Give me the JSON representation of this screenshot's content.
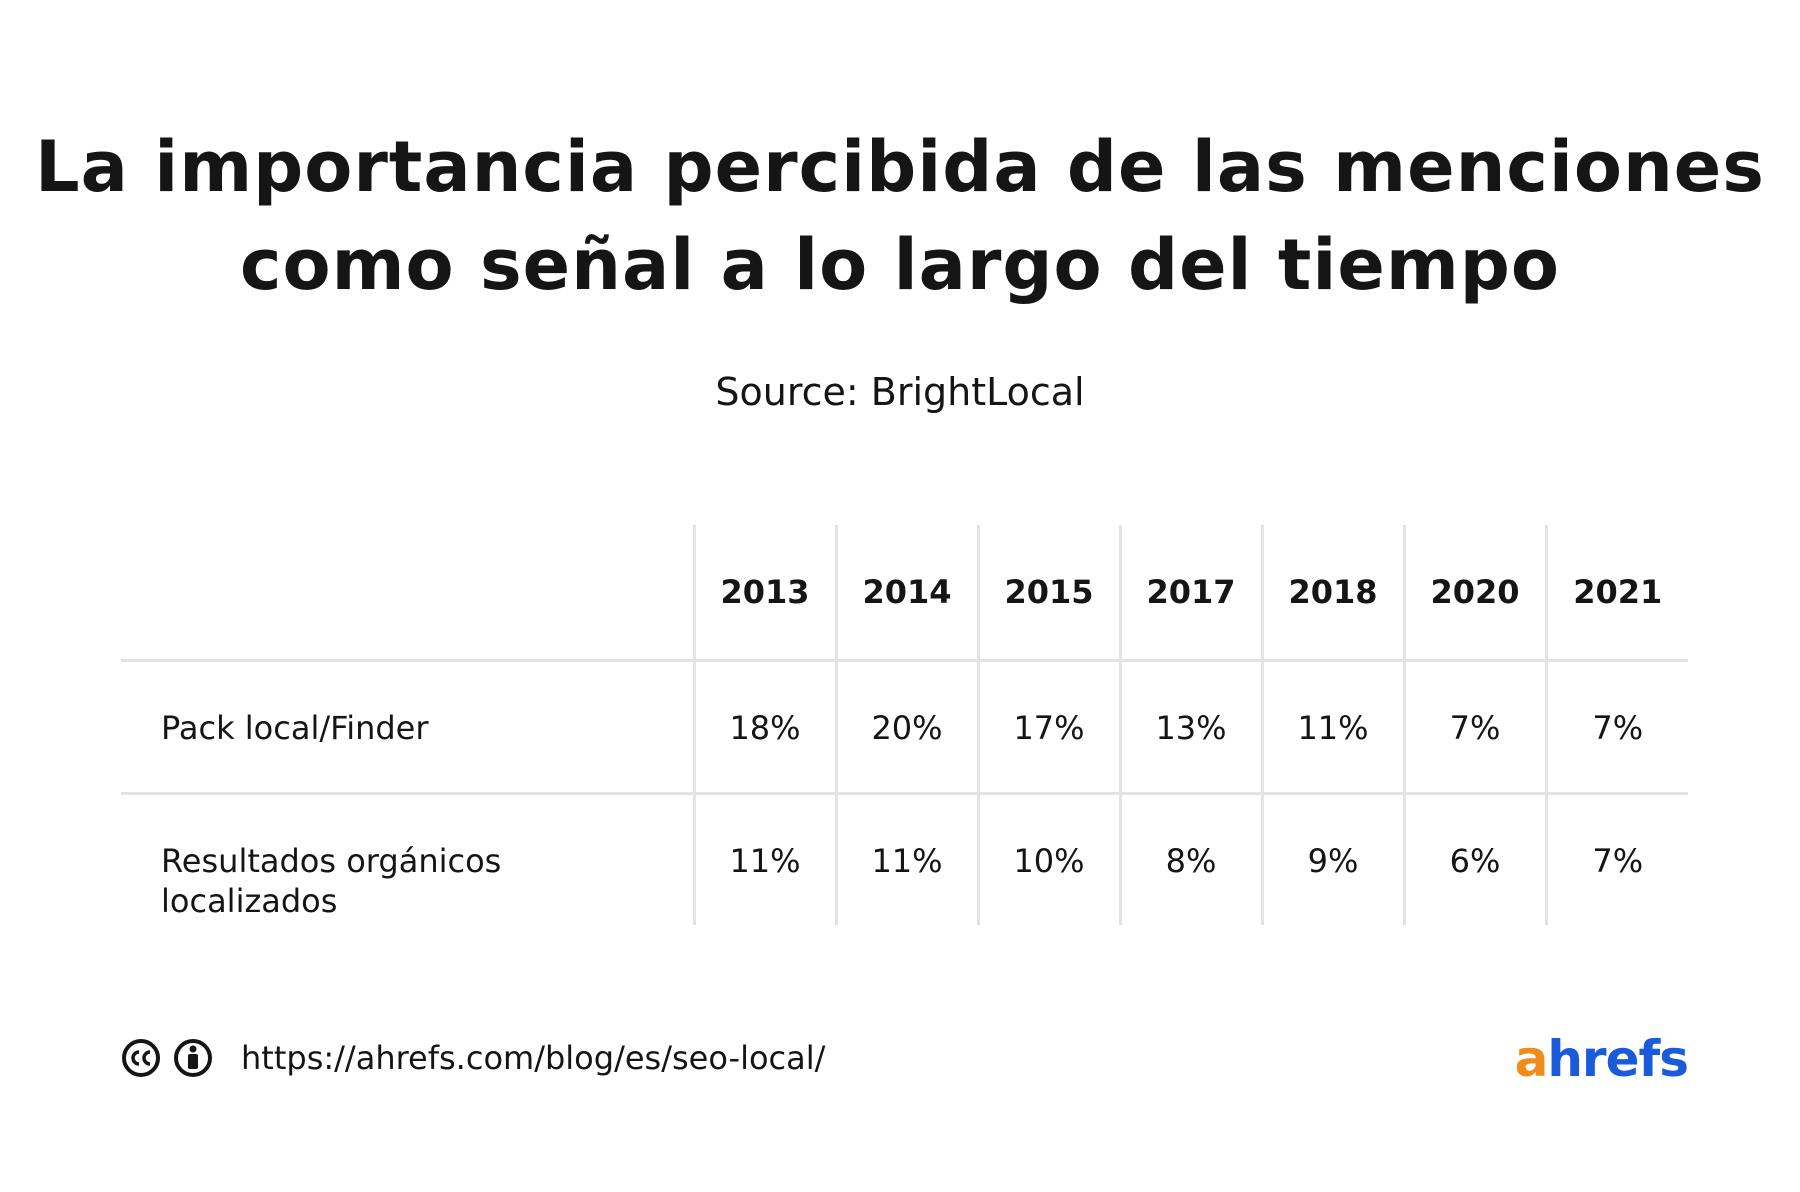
{
  "header": {
    "title_lines": [
      "La importancia percibida de las menciones",
      "como señal a lo largo del tiempo"
    ],
    "source": "Source: BrightLocal"
  },
  "table": {
    "columns": [
      "2013",
      "2014",
      "2015",
      "2017",
      "2018",
      "2020",
      "2021"
    ],
    "rows": [
      {
        "label": "Pack local/Finder",
        "cells": [
          "18%",
          "20%",
          "17%",
          "13%",
          "11%",
          "7%",
          "7%"
        ]
      },
      {
        "label": "Resultados orgánicos localizados",
        "cells": [
          "11%",
          "11%",
          "10%",
          "8%",
          "9%",
          "6%",
          "7%"
        ]
      }
    ]
  },
  "footer": {
    "url": "https://ahrefs.com/blog/es/seo-local/",
    "logo": "ahrefs"
  }
}
